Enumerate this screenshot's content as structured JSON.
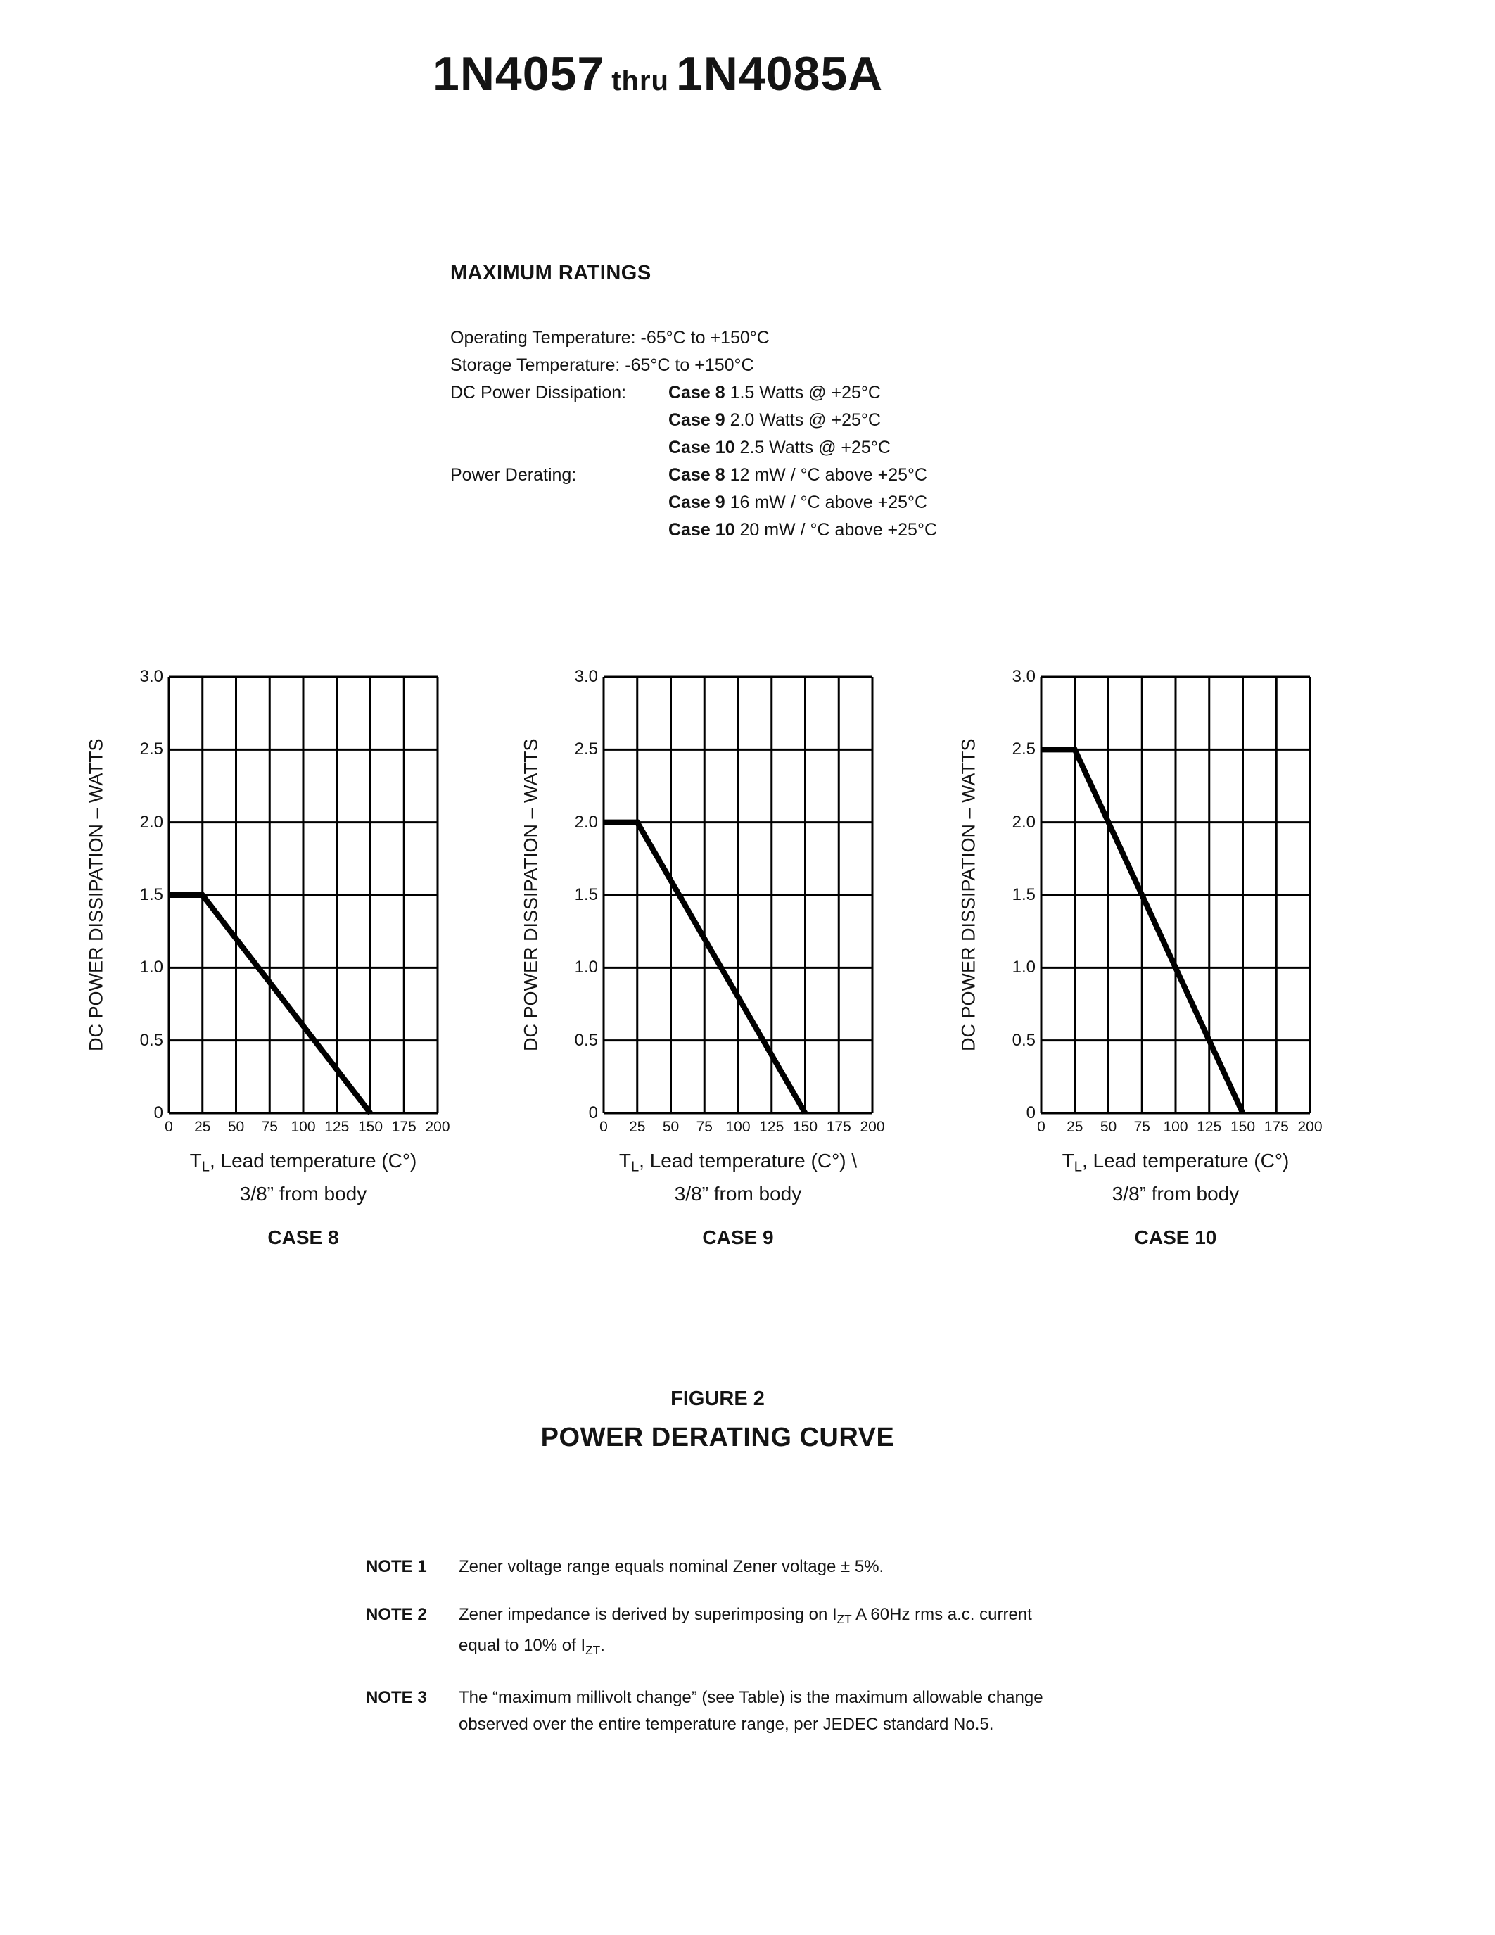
{
  "title": {
    "part1": "1N4057",
    "thru": "thru",
    "part2": "1N4085A"
  },
  "max_ratings": {
    "heading": "MAXIMUM RATINGS",
    "operating": "Operating Temperature: -65°C to +150°C",
    "storage": "Storage Temperature: -65°C to +150°C",
    "dissipation_label": "DC Power Dissipation:",
    "dissipation_rows": [
      {
        "case": "Case 8",
        "value": " 1.5 Watts @ +25°C"
      },
      {
        "case": "Case 9",
        "value": " 2.0 Watts @ +25°C"
      },
      {
        "case": "Case 10",
        "value": " 2.5 Watts @ +25°C"
      }
    ],
    "derating_label": "Power Derating:",
    "derating_rows": [
      {
        "case": "Case 8",
        "value": " 12 mW / °C above +25°C"
      },
      {
        "case": "Case 9",
        "value": " 16 mW / °C above +25°C"
      },
      {
        "case": "Case 10",
        "value": " 20 mW / °C above +25°C"
      }
    ]
  },
  "figure": {
    "number": "FIGURE 2",
    "title": "POWER DERATING CURVE"
  },
  "notes": {
    "note1": {
      "label": "NOTE 1",
      "text": "Zener voltage range equals nominal Zener voltage ± 5%."
    },
    "note2": {
      "label": "NOTE 2",
      "p1": "Zener impedance is derived by superimposing on I",
      "s1": "ZT",
      "p2": " A 60Hz rms a.c. current",
      "p3": "equal to 10% of I",
      "s2": "ZT",
      "p4": "."
    },
    "note3": {
      "label": "NOTE 3",
      "line1": "The “maximum millivolt change” (see Table) is the maximum allowable change",
      "line2": "observed over the entire temperature range, per JEDEC standard No.5."
    }
  },
  "chart_data": [
    {
      "type": "line",
      "case_label": "CASE 8",
      "ylabel": "DC POWER DISSIPATION – WATTS",
      "xlabel": {
        "t": "T",
        "sub": "L",
        "rest": ", Lead temperature (C°)",
        "line2": "3/8” from body"
      },
      "x": [
        0,
        25,
        150
      ],
      "y": [
        1.5,
        1.5,
        0
      ],
      "xlim": [
        0,
        200
      ],
      "ylim": [
        0,
        3
      ],
      "x_ticks": [
        "0",
        "25",
        "50",
        "75",
        "100",
        "125",
        "150",
        "175",
        "200"
      ],
      "y_ticks": [
        "3.0",
        "2.5",
        "2.0",
        "1.5",
        "1.0",
        "0.5",
        "0"
      ],
      "grid": true,
      "line_color": "#000000"
    },
    {
      "type": "line",
      "case_label": "CASE 9",
      "ylabel": "DC POWER DISSIPATION – WATTS",
      "xlabel": {
        "t": "T",
        "sub": "L",
        "rest": ", Lead temperature (C°)  \\",
        "line2": "3/8” from body"
      },
      "x": [
        0,
        25,
        150
      ],
      "y": [
        2.0,
        2.0,
        0
      ],
      "xlim": [
        0,
        200
      ],
      "ylim": [
        0,
        3
      ],
      "x_ticks": [
        "0",
        "25",
        "50",
        "75",
        "100",
        "125",
        "150",
        "175",
        "200"
      ],
      "y_ticks": [
        "3.0",
        "2.5",
        "2.0",
        "1.5",
        "1.0",
        "0.5",
        "0"
      ],
      "grid": true,
      "line_color": "#000000"
    },
    {
      "type": "line",
      "case_label": "CASE 10",
      "ylabel": "DC POWER DISSIPATION – WATTS",
      "xlabel": {
        "t": "T",
        "sub": "L",
        "rest": ", Lead temperature (C°)",
        "line2": "3/8” from body"
      },
      "x": [
        0,
        25,
        150
      ],
      "y": [
        2.5,
        2.5,
        0
      ],
      "xlim": [
        0,
        200
      ],
      "ylim": [
        0,
        3
      ],
      "x_ticks": [
        "0",
        "25",
        "50",
        "75",
        "100",
        "125",
        "150",
        "175",
        "200"
      ],
      "y_ticks": [
        "3.0",
        "2.5",
        "2.0",
        "1.5",
        "1.0",
        "0.5",
        "0"
      ],
      "grid": true,
      "line_color": "#000000"
    }
  ]
}
